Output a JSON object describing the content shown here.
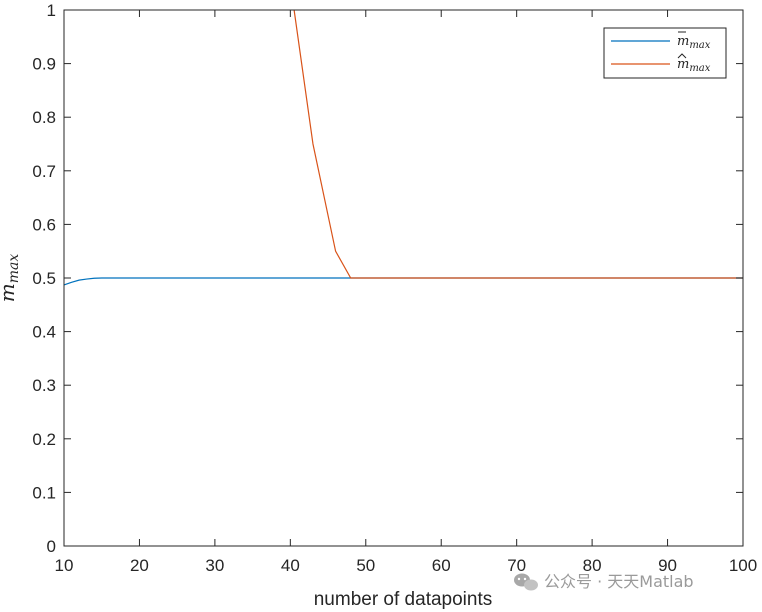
{
  "chart_data": {
    "type": "line",
    "title": "",
    "xlabel": "number of datapoints",
    "ylabel": "m",
    "ylabel_subscript": "max",
    "xlim": [
      10,
      100
    ],
    "ylim": [
      0,
      1
    ],
    "x_ticks": [
      10,
      20,
      30,
      40,
      50,
      60,
      70,
      80,
      90,
      100
    ],
    "y_ticks": [
      0,
      0.1,
      0.2,
      0.3,
      0.4,
      0.5,
      0.6,
      0.7,
      0.8,
      0.9,
      1
    ],
    "x_tick_labels": [
      "10",
      "20",
      "30",
      "40",
      "50",
      "60",
      "70",
      "80",
      "90",
      "100"
    ],
    "y_tick_labels": [
      "0",
      "0.1",
      "0.2",
      "0.3",
      "0.4",
      "0.5",
      "0.6",
      "0.7",
      "0.8",
      "0.9",
      "1"
    ],
    "grid": false,
    "legend_position": "top-right",
    "series": [
      {
        "name": "m",
        "name_accent": "bar",
        "name_subscript": "max",
        "color": "#0072BD",
        "x": [
          10,
          11,
          12,
          13,
          14,
          15,
          20,
          30,
          40,
          48,
          100
        ],
        "y": [
          0.487,
          0.492,
          0.496,
          0.498,
          0.4995,
          0.5,
          0.5,
          0.5,
          0.5,
          0.5,
          0.5
        ]
      },
      {
        "name": "m",
        "name_accent": "hat",
        "name_subscript": "max",
        "color": "#D95319",
        "x": [
          40.5,
          43,
          46,
          48,
          100
        ],
        "y": [
          1.0,
          0.75,
          0.55,
          0.5,
          0.5
        ]
      }
    ]
  },
  "watermark": {
    "text": "公众号 · 天天Matlab",
    "icon": "wechat-icon"
  }
}
